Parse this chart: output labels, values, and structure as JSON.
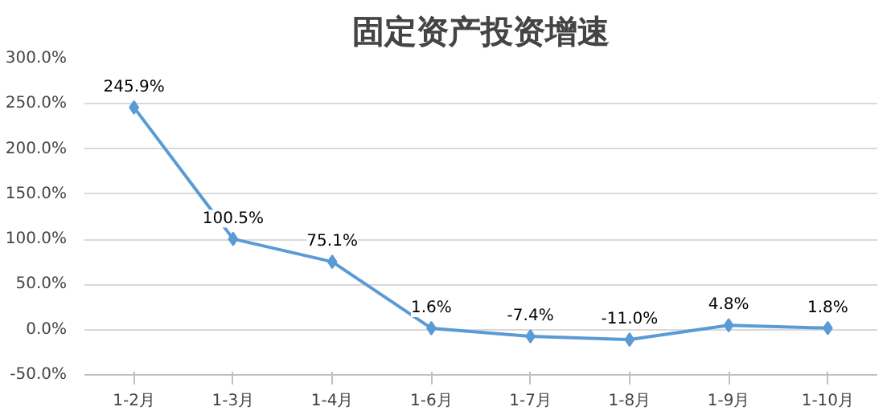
{
  "chart_data": {
    "type": "line",
    "title": "固定资产投资增速",
    "categories": [
      "1-2月",
      "1-3月",
      "1-4月",
      "1-6月",
      "1-7月",
      "1-8月",
      "1-9月",
      "1-10月"
    ],
    "series": [
      {
        "color": "#5b9bd5",
        "values": [
          245.9,
          100.5,
          75.1,
          1.6,
          -7.4,
          -11.0,
          4.8,
          1.8
        ],
        "value_labels": [
          "245.9%",
          "100.5%",
          "75.1%",
          "1.6%",
          "-7.4%",
          "-11.0%",
          "4.8%",
          "1.8%"
        ]
      }
    ],
    "ylim": [
      -50,
      300
    ],
    "yticks": [
      {
        "value": -50,
        "label": "-50.0%"
      },
      {
        "value": 0,
        "label": "0.0%"
      },
      {
        "value": 50,
        "label": "50.0%"
      },
      {
        "value": 100,
        "label": "100.0%"
      },
      {
        "value": 150,
        "label": "150.0%"
      },
      {
        "value": 200,
        "label": "200.0%"
      },
      {
        "value": 250,
        "label": "250.0%"
      },
      {
        "value": 300,
        "label": "300.0%"
      }
    ],
    "grid": "y",
    "marker": "diamond",
    "line_style": "solid"
  }
}
